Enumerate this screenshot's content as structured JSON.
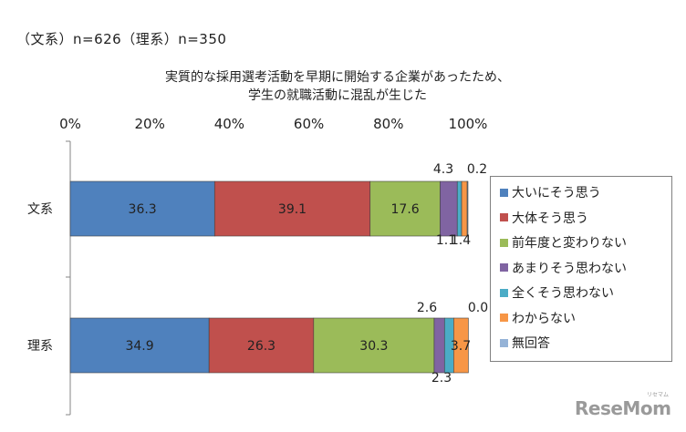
{
  "header": {
    "sample_note": "（文系）n=626（理系）n=350",
    "title_line1": "実質的な採用選考活動を早期に開始する企業があったため、",
    "title_line2": "学生の就職活動に混乱が生じた"
  },
  "brand": {
    "logo": "ReseMom",
    "logo_sub": "リセマム"
  },
  "chart_data": {
    "type": "bar",
    "orientation": "horizontal",
    "stacked": true,
    "title": "実質的な採用選考活動を早期に開始する企業があったため、学生の就職活動に混乱が生じた",
    "categories": [
      "文系",
      "理系"
    ],
    "xlim": [
      0,
      100
    ],
    "xticks": [
      "0%",
      "20%",
      "40%",
      "60%",
      "80%",
      "100%"
    ],
    "legend_position": "right",
    "grid": false,
    "series": [
      {
        "name": "大いにそう思う",
        "values": [
          36.3,
          34.9
        ],
        "labels": [
          "36.3",
          "34.9"
        ],
        "color": "#4f81bd"
      },
      {
        "name": "大体そう思う",
        "values": [
          39.1,
          26.3
        ],
        "labels": [
          "39.1",
          "26.3"
        ],
        "color": "#c0504d"
      },
      {
        "name": "前年度と変わりない",
        "values": [
          17.6,
          30.3
        ],
        "labels": [
          "17.6",
          "30.3"
        ],
        "color": "#9bbb59"
      },
      {
        "name": "あまりそう思わない",
        "values": [
          4.3,
          2.6
        ],
        "labels": [
          "4.3",
          "2.6"
        ],
        "color": "#8064a2"
      },
      {
        "name": "全くそう思わない",
        "values": [
          1.1,
          2.3
        ],
        "labels": [
          "1.1",
          "2.3"
        ],
        "color": "#4bacc6"
      },
      {
        "name": "わからない",
        "values": [
          1.4,
          3.7
        ],
        "labels": [
          "1.4",
          "3.7"
        ],
        "color": "#f79646"
      },
      {
        "name": "無回答",
        "values": [
          0.2,
          0.0
        ],
        "labels": [
          "0.2",
          "0.0"
        ],
        "color": "#95b3d7"
      }
    ]
  }
}
